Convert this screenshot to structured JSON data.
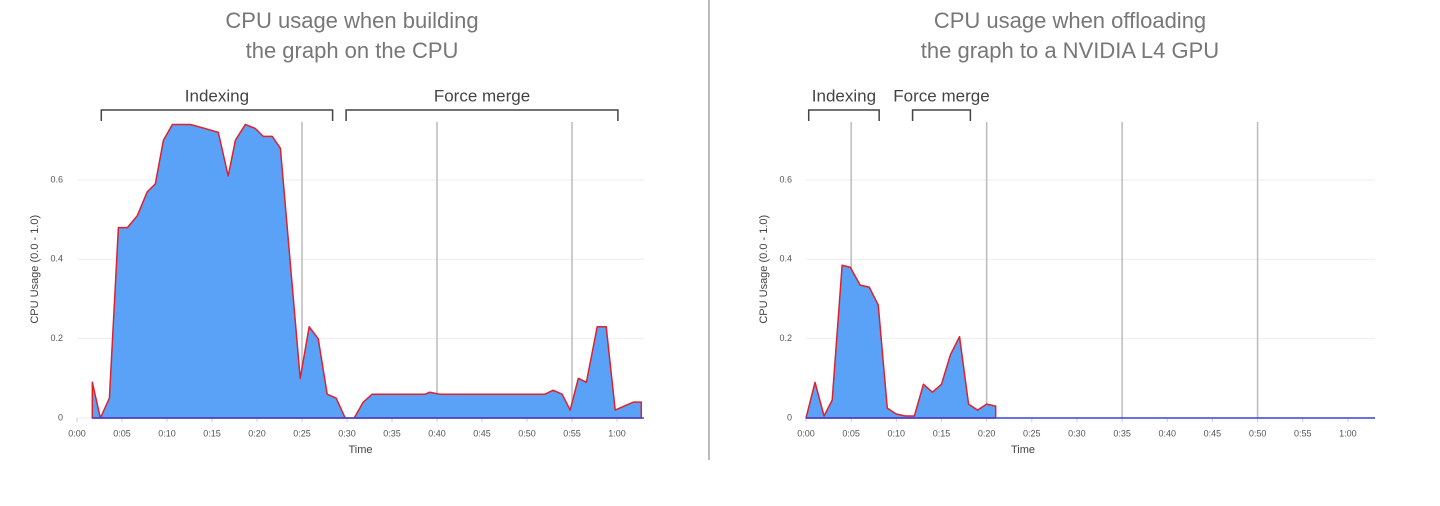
{
  "chart_data": [
    {
      "type": "area",
      "title": [
        "CPU usage when building",
        "the graph on the CPU"
      ],
      "x_label": "Time",
      "y_label": "CPU Usage (0.0 - 1.0)",
      "x": [
        1.7,
        2.6,
        3.6,
        4.6,
        5.6,
        6.7,
        7.8,
        8.7,
        9.6,
        10.6,
        12.6,
        14.2,
        15.7,
        16.8,
        17.6,
        18.7,
        19.8,
        20.7,
        21.7,
        22.6,
        24.8,
        25.8,
        26.8,
        27.8,
        28.8,
        29.8,
        30.8,
        31.8,
        32.8,
        38.7,
        39.2,
        40.3,
        52,
        52.9,
        53.9,
        54.8,
        55.7,
        56.6,
        57.8,
        58.8,
        59.8,
        60.8,
        61.8,
        62.7
      ],
      "values": [
        0.09,
        0,
        0.05,
        0.48,
        0.48,
        0.51,
        0.57,
        0.59,
        0.7,
        0.74,
        0.74,
        0.73,
        0.72,
        0.61,
        0.7,
        0.74,
        0.73,
        0.71,
        0.71,
        0.68,
        0.1,
        0.23,
        0.2,
        0.06,
        0.05,
        0,
        0,
        0.04,
        0.06,
        0.06,
        0.065,
        0.06,
        0.06,
        0.07,
        0.06,
        0.02,
        0.1,
        0.09,
        0.23,
        0.23,
        0.02,
        0.03,
        0.04,
        0.04
      ],
      "color": "#5aa2f8",
      "line_color": "#e0202a",
      "baseline_color": "#3344dd",
      "xlim": [
        0,
        63
      ],
      "ylim": [
        0,
        0.75
      ],
      "xticks": [
        {
          "value": 0,
          "label": "0:00"
        },
        {
          "value": 5,
          "label": "0:05"
        },
        {
          "value": 10,
          "label": "0:10"
        },
        {
          "value": 15,
          "label": "0:15"
        },
        {
          "value": 20,
          "label": "0:20"
        },
        {
          "value": 25,
          "label": "0:25"
        },
        {
          "value": 30,
          "label": "0:30"
        },
        {
          "value": 35,
          "label": "0:35"
        },
        {
          "value": 40,
          "label": "0:40"
        },
        {
          "value": 45,
          "label": "0:45"
        },
        {
          "value": 50,
          "label": "0:50"
        },
        {
          "value": 55,
          "label": "0:55"
        },
        {
          "value": 60,
          "label": "1:00"
        }
      ],
      "yticks": [
        0,
        0.2,
        0.4,
        0.6
      ],
      "grid": true,
      "vlines": [
        25,
        40,
        55
      ],
      "annotations": [
        {
          "text": "Indexing",
          "x": [
            2.7,
            28.4
          ]
        },
        {
          "text": "Force merge",
          "x": [
            29.9,
            60.1
          ]
        }
      ]
    },
    {
      "type": "area",
      "title": [
        "CPU usage when offloading",
        "the graph to a NVIDIA L4 GPU"
      ],
      "x_label": "Time",
      "y_label": "CPU Usage (0.0 - 1.0)",
      "x": [
        0,
        1,
        2,
        2.9,
        4,
        4.9,
        6,
        7,
        8,
        9,
        10,
        11,
        12,
        13,
        14,
        15,
        16,
        17,
        18,
        19,
        20,
        21
      ],
      "values": [
        0,
        0.09,
        0.005,
        0.045,
        0.385,
        0.38,
        0.335,
        0.33,
        0.285,
        0.025,
        0.01,
        0.005,
        0.005,
        0.085,
        0.065,
        0.085,
        0.16,
        0.205,
        0.035,
        0.02,
        0.035,
        0.03
      ],
      "color": "#5aa2f8",
      "line_color": "#e0202a",
      "baseline_color": "#3344dd",
      "xlim": [
        0,
        63
      ],
      "ylim": [
        0,
        0.75
      ],
      "xticks": [
        {
          "value": 0,
          "label": "0:00"
        },
        {
          "value": 5,
          "label": "0:05"
        },
        {
          "value": 10,
          "label": "0:10"
        },
        {
          "value": 15,
          "label": "0:15"
        },
        {
          "value": 20,
          "label": "0:20"
        },
        {
          "value": 25,
          "label": "0:25"
        },
        {
          "value": 30,
          "label": "0:30"
        },
        {
          "value": 35,
          "label": "0:35"
        },
        {
          "value": 40,
          "label": "0:40"
        },
        {
          "value": 45,
          "label": "0:45"
        },
        {
          "value": 50,
          "label": "0:50"
        },
        {
          "value": 55,
          "label": "0:55"
        },
        {
          "value": 60,
          "label": "1:00"
        }
      ],
      "yticks": [
        0,
        0.2,
        0.4,
        0.6
      ],
      "grid": true,
      "vlines": [
        5,
        20,
        35,
        50
      ],
      "annotations": [
        {
          "text": "Indexing",
          "x": [
            0.3,
            8.1
          ]
        },
        {
          "text": "Force merge",
          "x": [
            11.8,
            18.2
          ]
        }
      ]
    }
  ]
}
